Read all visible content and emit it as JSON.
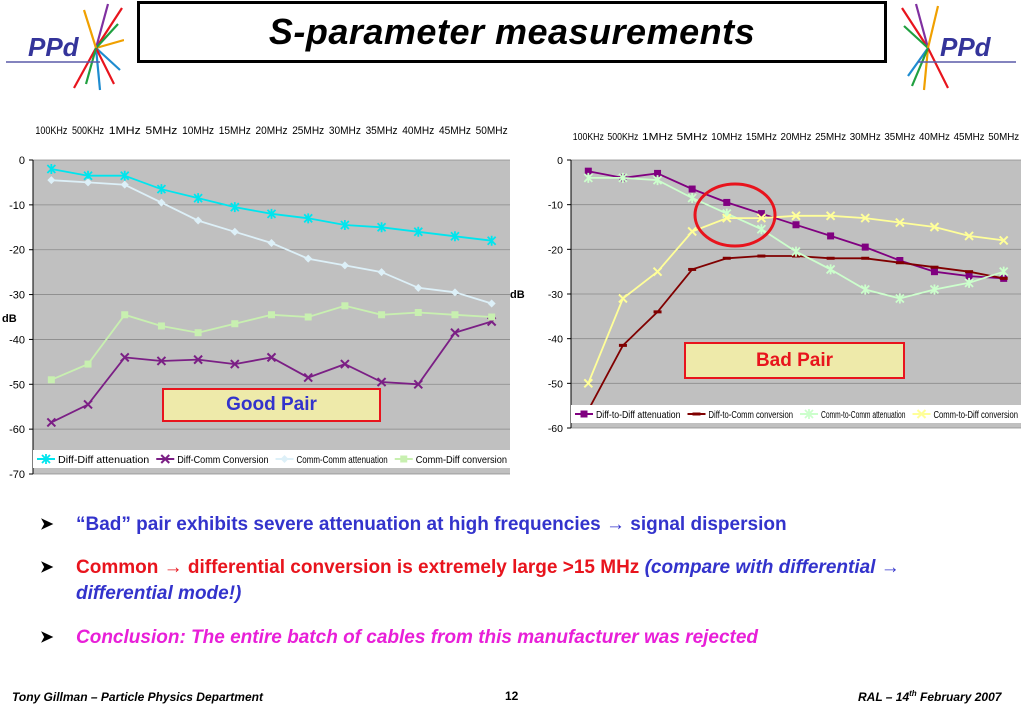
{
  "slide": {
    "title": "S-parameter measurements",
    "logo_text": "PPd",
    "good_pair_label": "Good Pair",
    "bad_pair_label": "Bad Pair",
    "bullets": {
      "b1": "“Bad” pair exhibits severe attenuation at high frequencies → signal dispersion",
      "b2_red": "Common → differential conversion is extremely large >15 MHz",
      "b2_blue": "(compare with differential → differential mode!)",
      "b3": "Conclusion: The entire batch of cables from this manufacturer was rejected"
    },
    "footer": {
      "left": "Tony Gillman – Particle Physics Department",
      "page": "12",
      "right_prefix": "RAL – 14",
      "right_sup": "th",
      "right_suffix": " February 2007"
    },
    "colors": {
      "blue_text": "#3333cc",
      "red_text": "#e8141d",
      "magenta_text": "#e81fd8",
      "plot_bg": "#c0c0c0"
    }
  },
  "chart_data": [
    {
      "type": "line",
      "categories": [
        "100KHz",
        "500KHz",
        "1MHz",
        "5MHz",
        "10MHz",
        "15MHz",
        "20MHz",
        "25MHz",
        "30MHz",
        "35MHz",
        "40MHz",
        "45MHz",
        "50MHz"
      ],
      "ylabel": "dB",
      "ylim": [
        -70,
        0
      ],
      "yticks": [
        "0",
        "-10",
        "-20",
        "-30",
        "-40",
        "-50",
        "-60",
        "-70"
      ],
      "legend_position": "bottom",
      "series": [
        {
          "name": "Diff-Diff attenuation",
          "color": "#00e5ee",
          "marker": "star",
          "values": [
            -2,
            -3.5,
            -3.5,
            -6.5,
            -8.5,
            -10.5,
            -12,
            -13,
            -14.5,
            -15,
            -16,
            -17,
            -18
          ]
        },
        {
          "name": "Diff-Comm Conversion",
          "color": "#7b1f85",
          "marker": "x",
          "values": [
            -58.5,
            -54.5,
            -44,
            -44.8,
            -44.5,
            -45.5,
            -44,
            -48.5,
            -45.5,
            -49.5,
            -50,
            -38.5,
            -36
          ]
        },
        {
          "name": "Comm-Comm attenuation",
          "color": "#ddf0f8",
          "marker": "diamond",
          "values": [
            -4.5,
            -5,
            -5.5,
            -9.5,
            -13.5,
            -16,
            -18.5,
            -22,
            -23.5,
            -25,
            -28.5,
            -29.5,
            -32
          ]
        },
        {
          "name": "Comm-Diff conversion",
          "color": "#c8f0b0",
          "marker": "square",
          "values": [
            -49,
            -45.5,
            -34.5,
            -37,
            -38.5,
            -36.5,
            -34.5,
            -35,
            -32.5,
            -34.5,
            -34,
            -34.5,
            -35
          ]
        }
      ]
    },
    {
      "type": "line",
      "categories": [
        "100KHz",
        "500KHz",
        "1MHz",
        "5MHz",
        "10MHz",
        "15MHz",
        "20MHz",
        "25MHz",
        "30MHz",
        "35MHz",
        "40MHz",
        "45MHz",
        "50MHz"
      ],
      "ylabel": "dB",
      "ylim": [
        -60,
        0
      ],
      "yticks": [
        "0",
        "-10",
        "-20",
        "-30",
        "-40",
        "-50",
        "-60"
      ],
      "legend_position": "bottom",
      "series": [
        {
          "name": "Diff-to-Diff attenuation",
          "color": "#800080",
          "marker": "square",
          "values": [
            -2.5,
            -4,
            -3,
            -6.5,
            -9.5,
            -12,
            -14.5,
            -17,
            -19.5,
            -22.5,
            -25,
            -26,
            -26.5
          ]
        },
        {
          "name": "Diff-to-Comm conversion",
          "color": "#800000",
          "marker": "dash",
          "values": [
            -56,
            -41.5,
            -34,
            -24.5,
            -22,
            -21.5,
            -21.5,
            -22,
            -22,
            -23,
            -24,
            -25,
            -26.5
          ]
        },
        {
          "name": "Comm-to-Comm attenuation",
          "color": "#ccffcc",
          "marker": "star",
          "values": [
            -4,
            -4,
            -4.5,
            -8.5,
            -12,
            -15.5,
            -20.5,
            -24.5,
            -29,
            -31,
            -29,
            -27.5,
            -25
          ]
        },
        {
          "name": "Comm-to-Diff conversion",
          "color": "#ffff99",
          "marker": "x",
          "values": [
            -50,
            -31,
            -25,
            -16,
            -13,
            -13,
            -12.5,
            -12.5,
            -13,
            -14,
            -15,
            -17,
            -18
          ]
        }
      ]
    }
  ]
}
